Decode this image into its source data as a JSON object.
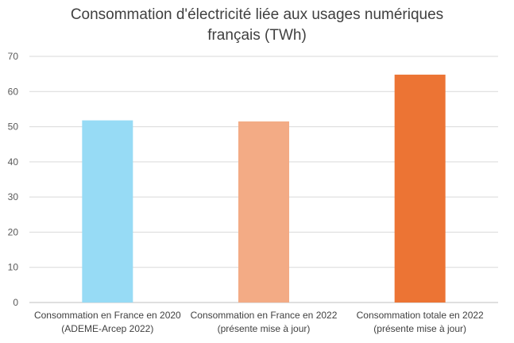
{
  "chart_data": {
    "type": "bar",
    "title": [
      "Consommation d'électricité liée aux usages numériques",
      "français (TWh)"
    ],
    "categories": [
      [
        "Consommation en France en 2020",
        "(ADEME-Arcep 2022)"
      ],
      [
        "Consommation en France en 2022",
        "(présente mise à jour)"
      ],
      [
        "Consommation totale en 2022",
        "(présente mise à jour)"
      ]
    ],
    "values": [
      51.8,
      51.5,
      64.8
    ],
    "colors": [
      "#97dbf5",
      "#f3ab85",
      "#ec7434"
    ],
    "ylim": [
      0,
      70
    ],
    "yticks": [
      0,
      10,
      20,
      30,
      40,
      50,
      60,
      70
    ],
    "grid": true,
    "xlabel": "",
    "ylabel": ""
  }
}
